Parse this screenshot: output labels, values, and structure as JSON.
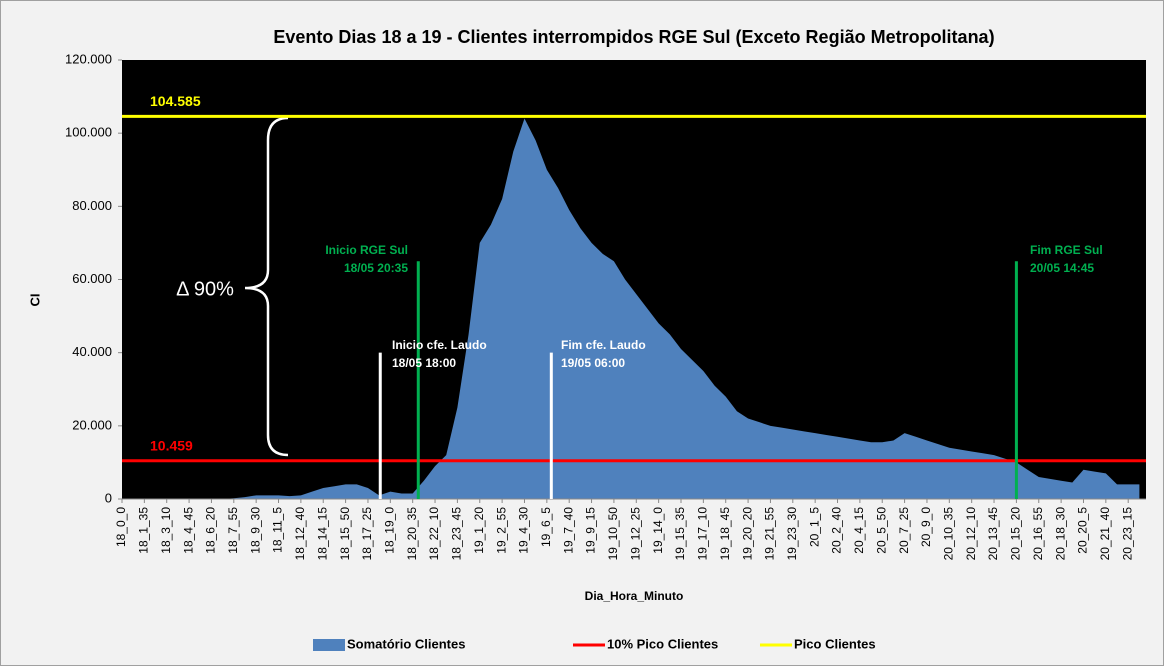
{
  "chart_data": {
    "type": "area",
    "title": "Evento Dias 18 a 19 - Clientes interrompidos RGE Sul (Exceto Região Metropolitana)",
    "x_label": "Dia_Hora_Minuto",
    "y_label": "CI",
    "categories": [
      "18_0_0",
      null,
      "18_1_35",
      null,
      "18_3_10",
      null,
      "18_4_45",
      null,
      "18_6_20",
      null,
      "18_7_55",
      null,
      "18_9_30",
      null,
      "18_11_5",
      null,
      "18_12_40",
      null,
      "18_14_15",
      null,
      "18_15_50",
      null,
      "18_17_25",
      null,
      "18_19_0",
      null,
      "18_20_35",
      null,
      "18_22_10",
      null,
      "18_23_45",
      null,
      "19_1_20",
      null,
      "19_2_55",
      null,
      "19_4_30",
      null,
      "19_6_5",
      null,
      "19_7_40",
      null,
      "19_9_15",
      null,
      "19_10_50",
      null,
      "19_12_25",
      null,
      "19_14_0",
      null,
      "19_15_35",
      null,
      "19_17_10",
      null,
      "19_18_45",
      null,
      "19_20_20",
      null,
      "19_21_55",
      null,
      "19_23_30",
      null,
      "20_1_5",
      null,
      "20_2_40",
      null,
      "20_4_15",
      null,
      "20_5_50",
      null,
      "20_7_25",
      null,
      "20_9_0",
      null,
      "20_10_35",
      null,
      "20_12_10",
      null,
      "20_13_45",
      null,
      "20_15_20",
      null,
      "20_16_55",
      null,
      "20_18_30",
      null,
      "20_20_5",
      null,
      "20_21_40",
      null,
      "20_23_15",
      null
    ],
    "series": [
      {
        "name": "Somatório Clientes",
        "color": "#4f81bd",
        "values": [
          0,
          0,
          0,
          0,
          0,
          0,
          0,
          0,
          0,
          0,
          200,
          500,
          1000,
          1000,
          1000,
          800,
          1000,
          2000,
          3000,
          3500,
          4000,
          4000,
          3000,
          1000,
          2000,
          1500,
          1500,
          5000,
          9000,
          12000,
          25000,
          45000,
          70000,
          75000,
          82000,
          95000,
          104000,
          98000,
          90000,
          85000,
          79000,
          74000,
          70000,
          67000,
          65000,
          60000,
          56000,
          52000,
          48000,
          45000,
          41000,
          38000,
          35000,
          31000,
          28000,
          24000,
          22000,
          21000,
          20000,
          19500,
          19000,
          18500,
          18000,
          17500,
          17000,
          16500,
          16000,
          15500,
          15500,
          16000,
          18000,
          17000,
          16000,
          15000,
          14000,
          13500,
          13000,
          12500,
          12000,
          11000,
          10000,
          8000,
          6000,
          5500,
          5000,
          4500,
          8000,
          7500,
          7000,
          4000,
          4000,
          4000
        ]
      },
      {
        "name": "10% Pico Clientes",
        "color": "#ff0000",
        "value": 10459,
        "value_label": "10.459"
      },
      {
        "name": "Pico Clientes",
        "color": "#ffff00",
        "value": 104585,
        "value_label": "104.585"
      }
    ],
    "ylim": [
      0,
      120000
    ],
    "yticks": [
      0,
      {
        "value": 20000,
        "label": "20.000"
      },
      {
        "value": 40000,
        "label": "40.000"
      },
      {
        "value": 60000,
        "label": "60.000"
      },
      {
        "value": 80000,
        "label": "80.000"
      },
      {
        "value": 100000,
        "label": "100.000"
      },
      {
        "value": 120000,
        "label": "120.000"
      }
    ],
    "annotations": [
      {
        "lines": [
          "Inicio RGE Sul",
          "18/05 20:35"
        ],
        "color": "#00b050"
      },
      {
        "lines": [
          "Fim  RGE Sul",
          "20/05 14:45"
        ],
        "color": "#00b050"
      },
      {
        "lines": [
          "Inicio  cfe. Laudo",
          "18/05 18:00"
        ],
        "color": "#ffffff"
      },
      {
        "lines": [
          "Fim  cfe. Laudo",
          "19/05 06:00"
        ],
        "color": "#ffffff"
      }
    ],
    "delta_label": "Δ 90%",
    "legend": "bottom"
  }
}
